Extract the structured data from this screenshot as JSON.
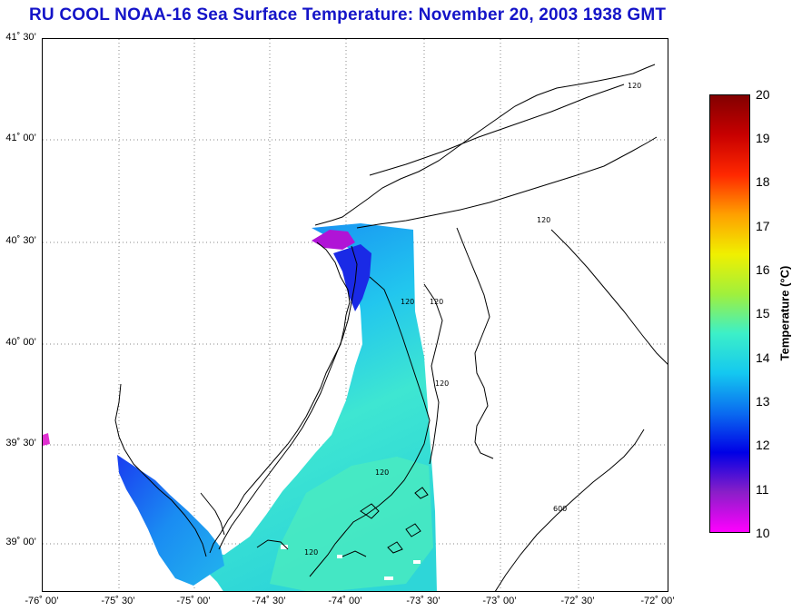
{
  "title": "RU COOL  NOAA-16  Sea Surface Temperature:  November 20, 2003 1938 GMT",
  "lat_labels": [
    "41˚ 30’",
    "41˚ 00’",
    "40˚ 30’",
    "40˚ 00’",
    "39˚ 30’",
    "39˚ 00’"
  ],
  "lon_labels": [
    "-76˚ 00’",
    "-75˚ 30’",
    "-75˚ 00’",
    "-74˚ 30’",
    "-74˚ 00’",
    "-73˚ 30’",
    "-73˚ 00’",
    "-72˚ 30’",
    "-72˚ 00’"
  ],
  "contour_labels": [
    "120",
    "120",
    "120",
    "120",
    "120",
    "120",
    "120",
    "600"
  ],
  "colorbar": {
    "title": "Temperature (°C)",
    "ticks": [
      "20",
      "19",
      "18",
      "17",
      "16",
      "15",
      "14",
      "13",
      "12",
      "11",
      "10"
    ],
    "min": 10,
    "max": 20,
    "colors": [
      "#ff00ff",
      "#8a1ec8",
      "#0000e6",
      "#0a6cf0",
      "#14c8f0",
      "#3cf0c8",
      "#a0f03c",
      "#f0f000",
      "#ffa000",
      "#ff2800",
      "#c80000",
      "#820000"
    ]
  }
}
